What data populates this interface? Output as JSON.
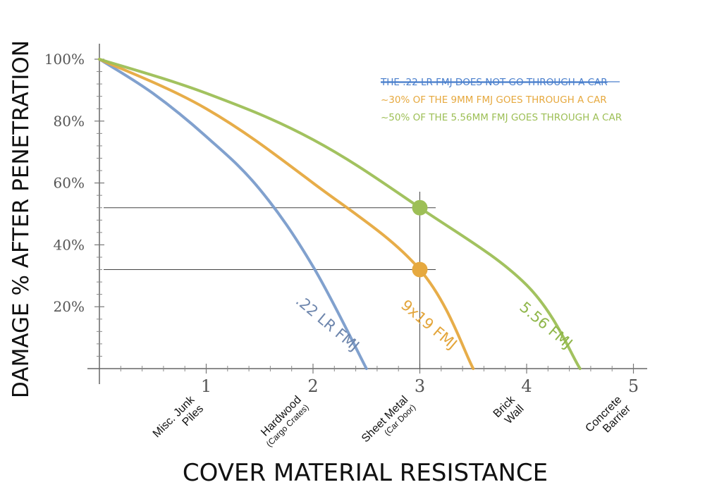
{
  "chart_data": {
    "type": "line",
    "xlabel": "COVER MATERIAL RESISTANCE",
    "ylabel": "DAMAGE % AFTER PENETRATION",
    "xlim": [
      0,
      5
    ],
    "ylim": [
      0,
      100
    ],
    "x_ticks": [
      "1",
      "2",
      "3",
      "4",
      "5"
    ],
    "y_ticks": [
      "20%",
      "40%",
      "60%",
      "80%",
      "100%"
    ],
    "categories": [
      {
        "x": 1,
        "label": "Misc. Junk",
        "label2": "Piles",
        "sub": ""
      },
      {
        "x": 2,
        "label": "Hardwood",
        "label2": "",
        "sub": "(Cargo Crates)"
      },
      {
        "x": 3,
        "label": "Sheet Metal",
        "label2": "",
        "sub": "(Car Door)"
      },
      {
        "x": 4,
        "label": "Brick",
        "label2": "Wall",
        "sub": ""
      },
      {
        "x": 5,
        "label": "Concrete",
        "label2": "Barrier",
        "sub": ""
      }
    ],
    "series": [
      {
        "name": ".22 LR FMJ",
        "color": "#7a9ccb",
        "x_end": 2.5,
        "points": [
          [
            0,
            100
          ],
          [
            0.5,
            89
          ],
          [
            1,
            75
          ],
          [
            1.5,
            58
          ],
          [
            2,
            33
          ],
          [
            2.5,
            0
          ]
        ]
      },
      {
        "name": "9x19 FMJ",
        "color": "#e6a93f",
        "x_end": 3.5,
        "points": [
          [
            0,
            100
          ],
          [
            1,
            84
          ],
          [
            2,
            60
          ],
          [
            3,
            32
          ],
          [
            3.5,
            0
          ]
        ]
      },
      {
        "name": "5.56 FMJ",
        "color": "#9dbf56",
        "x_end": 4.5,
        "points": [
          [
            0,
            100
          ],
          [
            1,
            89
          ],
          [
            2,
            74
          ],
          [
            3,
            52
          ],
          [
            4,
            27
          ],
          [
            4.5,
            0
          ]
        ]
      }
    ],
    "markers": [
      {
        "x": 3,
        "y": 52,
        "color": "#9dbf56"
      },
      {
        "x": 3,
        "y": 32,
        "color": "#e6a93f"
      }
    ],
    "legend": [
      {
        "text": "THE .22 LR FMJ DOES NOT GO THROUGH A CAR",
        "color": "#4a7fcc",
        "strike": true
      },
      {
        "text": "~30% OF THE 9MM FMJ GOES THROUGH A CAR",
        "color": "#e6a93f",
        "strike": false
      },
      {
        "text": "~50% OF THE 5.56MM FMJ GOES THROUGH A CAR",
        "color": "#9dbf56",
        "strike": false
      }
    ],
    "legend_position": "top-right",
    "grid": false
  }
}
